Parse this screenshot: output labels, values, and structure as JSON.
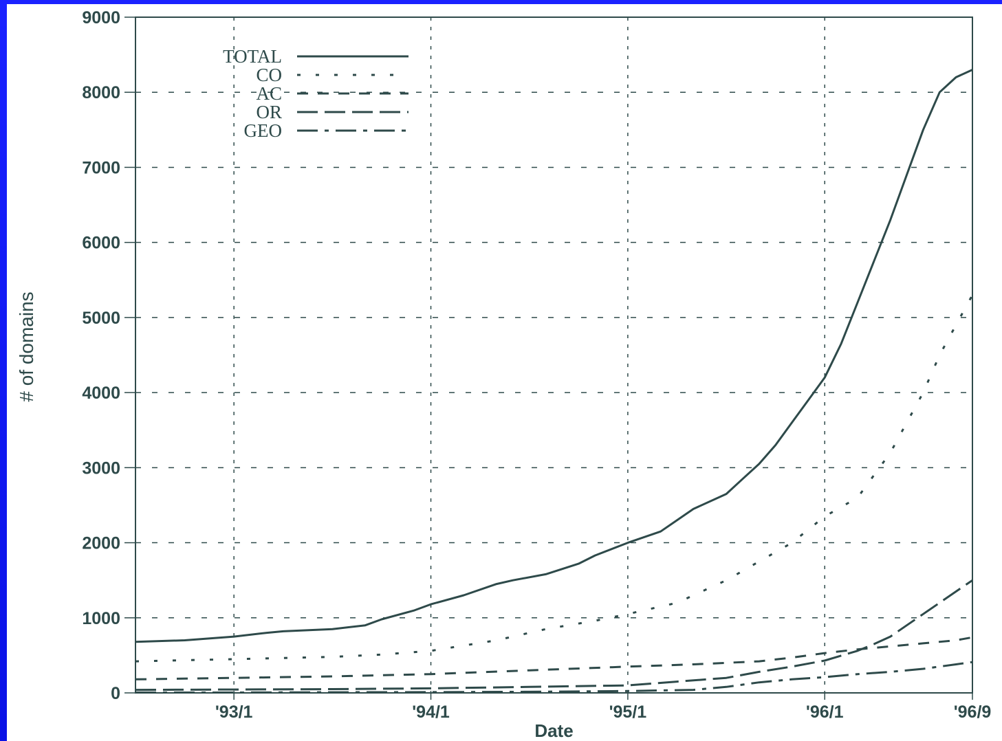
{
  "chart_data": {
    "type": "line",
    "title": "",
    "xlabel": "Date",
    "ylabel": "# of domains",
    "xlim": [
      0,
      51
    ],
    "ylim": [
      0,
      9000
    ],
    "x_ticks": [
      {
        "x": 6,
        "label": "'93/1"
      },
      {
        "x": 18,
        "label": "'94/1"
      },
      {
        "x": 30,
        "label": "'95/1"
      },
      {
        "x": 42,
        "label": "'96/1"
      },
      {
        "x": 51,
        "label": "'96/9"
      }
    ],
    "y_ticks": [
      0,
      1000,
      2000,
      3000,
      4000,
      5000,
      6000,
      7000,
      8000,
      9000
    ],
    "grid": true,
    "legend_position": "top-left",
    "x_unit": "months (0 = '92/7)",
    "series": [
      {
        "name": "TOTAL",
        "style": "solid",
        "x": [
          0,
          3,
          6,
          8,
          9,
          12,
          14,
          15,
          17,
          18,
          20,
          22,
          23,
          25,
          27,
          28,
          30,
          32,
          34,
          36,
          37,
          38,
          39,
          40,
          41,
          42,
          43,
          44,
          45,
          46,
          47,
          48,
          49,
          50,
          51
        ],
        "values": [
          680,
          700,
          750,
          800,
          820,
          850,
          900,
          980,
          1100,
          1180,
          1300,
          1450,
          1500,
          1580,
          1720,
          1830,
          2000,
          2150,
          2450,
          2650,
          2850,
          3050,
          3300,
          3600,
          3900,
          4200,
          4650,
          5200,
          5750,
          6300,
          6900,
          7500,
          8000,
          8200,
          8300
        ]
      },
      {
        "name": "CO",
        "style": "dotted",
        "x": [
          0,
          6,
          12,
          15,
          18,
          22,
          25,
          28,
          30,
          33,
          36,
          38,
          40,
          42,
          44,
          45,
          46,
          47,
          48,
          49,
          50,
          51
        ],
        "values": [
          420,
          450,
          480,
          510,
          560,
          700,
          850,
          960,
          1050,
          1200,
          1500,
          1750,
          2000,
          2350,
          2600,
          2900,
          3200,
          3600,
          4000,
          4500,
          4900,
          5300
        ]
      },
      {
        "name": "AC",
        "style": "dashed",
        "x": [
          0,
          6,
          12,
          18,
          24,
          30,
          34,
          38,
          40,
          42,
          44,
          46,
          48,
          50,
          51
        ],
        "values": [
          180,
          200,
          220,
          250,
          300,
          350,
          380,
          420,
          470,
          530,
          580,
          620,
          660,
          700,
          740
        ]
      },
      {
        "name": "OR",
        "style": "long-dashed",
        "x": [
          0,
          6,
          12,
          18,
          24,
          30,
          33,
          36,
          38,
          40,
          42,
          44,
          45,
          46,
          47,
          48,
          49,
          50,
          51
        ],
        "values": [
          40,
          45,
          50,
          60,
          80,
          100,
          150,
          200,
          280,
          350,
          430,
          560,
          650,
          750,
          900,
          1050,
          1200,
          1350,
          1500
        ]
      },
      {
        "name": "GEO",
        "style": "dash-dot",
        "x": [
          0,
          6,
          12,
          18,
          24,
          30,
          34,
          36,
          38,
          40,
          42,
          44,
          46,
          48,
          50,
          51
        ],
        "values": [
          5,
          5,
          8,
          10,
          15,
          25,
          40,
          80,
          140,
          180,
          210,
          250,
          280,
          320,
          380,
          410
        ]
      }
    ]
  }
}
